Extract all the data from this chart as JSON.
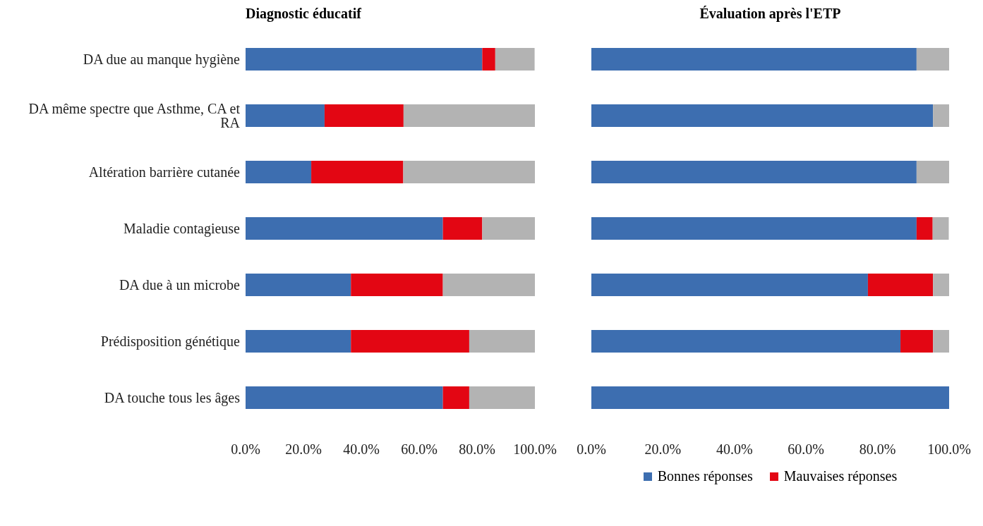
{
  "chart_data": [
    {
      "type": "bar",
      "title": "Diagnostic éducatif",
      "orientation": "horizontal",
      "stacked": true,
      "categories": [
        "DA due au manque hygiène",
        "DA même spectre que Asthme, CA et RA",
        "Altération barrière cutanée",
        "Maladie contagieuse",
        "DA due à un microbe",
        "Prédisposition génétique",
        "DA touche tous les âges"
      ],
      "series": [
        {
          "color": "#3d6eb0",
          "values": [
            81.8,
            27.3,
            22.7,
            68.2,
            36.4,
            36.4,
            68.2
          ]
        },
        {
          "color": "#e30613",
          "values": [
            4.5,
            27.3,
            31.8,
            13.6,
            31.8,
            40.9,
            9.1
          ]
        },
        {
          "color": "#b3b3b3",
          "values": [
            13.6,
            45.5,
            45.5,
            18.2,
            31.8,
            22.7,
            22.7
          ]
        }
      ],
      "xlim": [
        0,
        100
      ],
      "xticks": [
        {
          "value": 0,
          "label": "0.0%"
        },
        {
          "value": 20,
          "label": "20.0%"
        },
        {
          "value": 40,
          "label": "40.0%"
        },
        {
          "value": 60,
          "label": "60.0%"
        },
        {
          "value": 80,
          "label": "80.0%"
        },
        {
          "value": 100,
          "label": "100.0%"
        }
      ],
      "grid": false
    },
    {
      "type": "bar",
      "title": "Évaluation après l'ETP",
      "orientation": "horizontal",
      "stacked": true,
      "categories": [
        null,
        null,
        null,
        null,
        null,
        null,
        null
      ],
      "series": [
        {
          "name": "Bonnes réponses",
          "color": "#3d6eb0",
          "values": [
            90.9,
            95.5,
            90.9,
            90.9,
            77.3,
            86.4,
            100
          ]
        },
        {
          "name": "Mauvaises réponses",
          "color": "#e30613",
          "values": [
            0,
            0,
            0,
            4.5,
            18.2,
            9.1,
            0
          ]
        },
        {
          "color": "#b3b3b3",
          "values": [
            9.1,
            4.5,
            9.1,
            4.5,
            4.5,
            4.5,
            0
          ]
        }
      ],
      "xlim": [
        0,
        100
      ],
      "xticks": [
        {
          "value": 0,
          "label": "0.0%"
        },
        {
          "value": 20,
          "label": "20.0%"
        },
        {
          "value": 40,
          "label": "40.0%"
        },
        {
          "value": 60,
          "label": "60.0%"
        },
        {
          "value": 80,
          "label": "80.0%"
        },
        {
          "value": 100,
          "label": "100.0%"
        }
      ],
      "tick_labels": "x",
      "grid": false,
      "legend": "bottom"
    }
  ]
}
